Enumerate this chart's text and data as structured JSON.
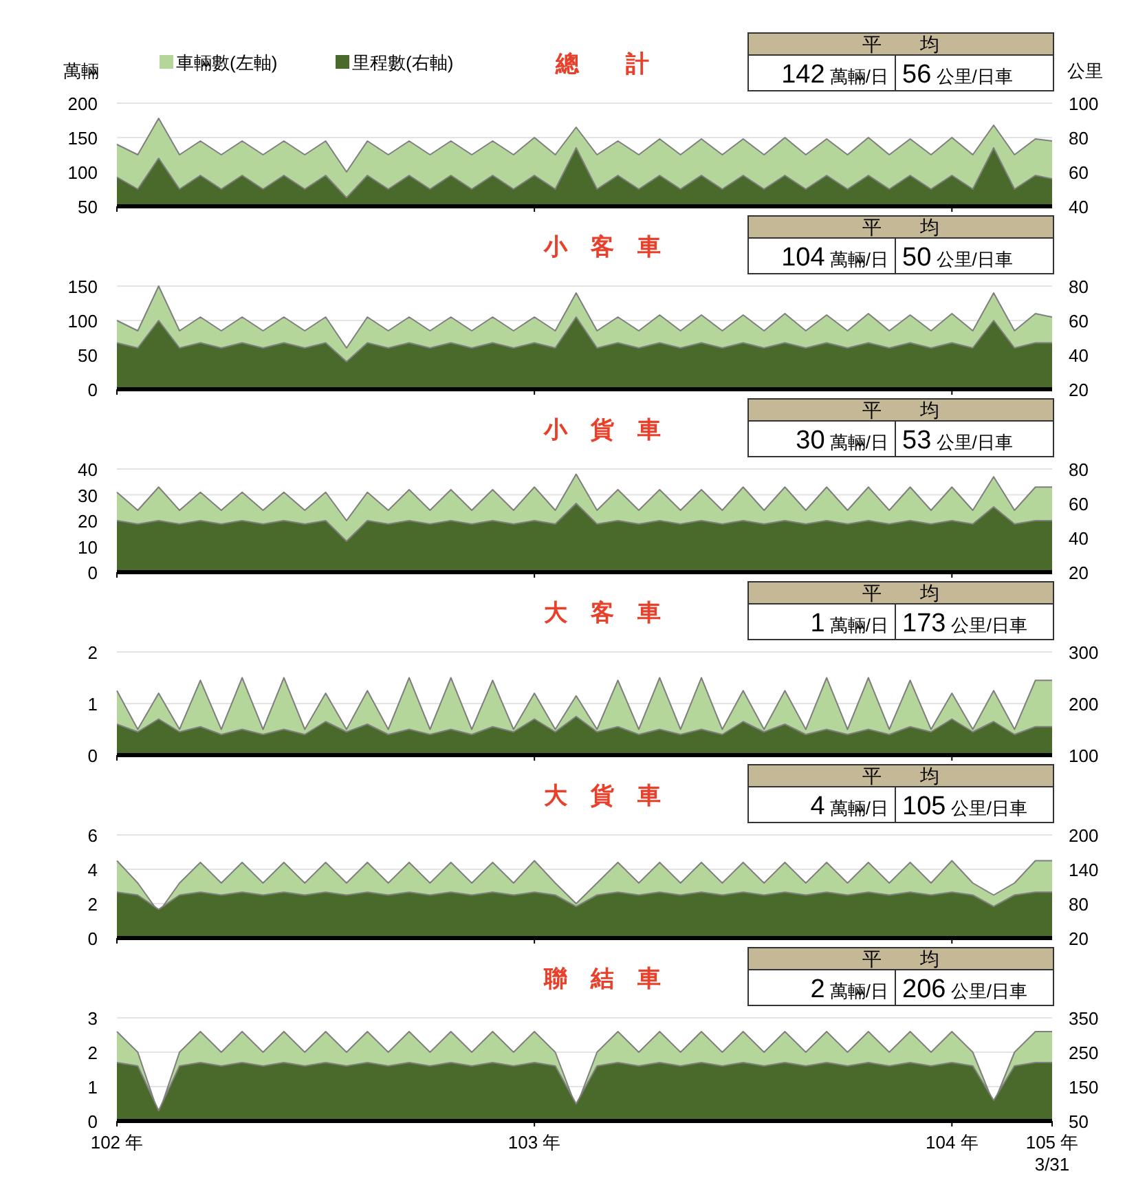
{
  "chart_data": [
    {
      "type": "area",
      "title": "總　　計",
      "ylabel": "萬輛",
      "y2label": "公里",
      "legend": "top left",
      "grid": "y",
      "tick_labels": "y",
      "annotations": [
        "平　　均",
        "142 萬輛/日",
        "56 公里/日車"
      ],
      "x": [
        102,
        102.05,
        102.1,
        102.15,
        102.2,
        102.25,
        102.3,
        102.35,
        102.4,
        102.45,
        102.5,
        102.55,
        102.6,
        102.65,
        102.7,
        102.75,
        102.8,
        102.85,
        102.9,
        102.95,
        103,
        103.05,
        103.1,
        103.15,
        103.2,
        103.25,
        103.3,
        103.35,
        103.4,
        103.45,
        103.5,
        103.55,
        103.6,
        103.65,
        103.7,
        103.75,
        103.8,
        103.85,
        103.9,
        103.95,
        104,
        104.05,
        104.1,
        104.15,
        104.2,
        104.24
      ],
      "xlim": [
        102,
        104.24
      ],
      "xticks": [
        102,
        103,
        104
      ],
      "ylim": [
        50,
        200
      ],
      "yticks": [
        50,
        100,
        150,
        200
      ],
      "y2lim": [
        40,
        100
      ],
      "y2ticks": [
        40,
        60,
        80,
        100
      ],
      "series": [
        {
          "name": "車輛數(左軸)",
          "color": "#b5d69a",
          "values": [
            140,
            125,
            178,
            125,
            145,
            125,
            145,
            125,
            145,
            125,
            145,
            100,
            145,
            125,
            145,
            125,
            145,
            125,
            145,
            125,
            150,
            125,
            165,
            125,
            145,
            125,
            148,
            125,
            148,
            125,
            148,
            125,
            150,
            125,
            148,
            125,
            150,
            125,
            148,
            125,
            150,
            125,
            168,
            125,
            148,
            145
          ]
        },
        {
          "name": "里程數(右軸)",
          "color": "#4a6a2c",
          "axis": "y2",
          "values": [
            57,
            50,
            68,
            50,
            58,
            50,
            58,
            50,
            58,
            50,
            58,
            45,
            58,
            50,
            58,
            50,
            58,
            50,
            58,
            50,
            58,
            50,
            74,
            50,
            58,
            50,
            58,
            50,
            58,
            50,
            58,
            50,
            58,
            50,
            58,
            50,
            58,
            50,
            58,
            50,
            58,
            50,
            74,
            50,
            58,
            56
          ]
        }
      ]
    },
    {
      "type": "area",
      "title": "小　客　車",
      "grid": "y",
      "tick_labels": "y",
      "annotations": [
        "平　　均",
        "104 萬輛/日",
        "50 公里/日車"
      ],
      "x": [
        102,
        102.05,
        102.1,
        102.15,
        102.2,
        102.25,
        102.3,
        102.35,
        102.4,
        102.45,
        102.5,
        102.55,
        102.6,
        102.65,
        102.7,
        102.75,
        102.8,
        102.85,
        102.9,
        102.95,
        103,
        103.05,
        103.1,
        103.15,
        103.2,
        103.25,
        103.3,
        103.35,
        103.4,
        103.45,
        103.5,
        103.55,
        103.6,
        103.65,
        103.7,
        103.75,
        103.8,
        103.85,
        103.9,
        103.95,
        104,
        104.05,
        104.1,
        104.15,
        104.2,
        104.24
      ],
      "xlim": [
        102,
        104.24
      ],
      "xticks": [
        102,
        103,
        104
      ],
      "ylim": [
        0,
        150
      ],
      "yticks": [
        0,
        50,
        100,
        150
      ],
      "y2lim": [
        20,
        80
      ],
      "y2ticks": [
        20,
        40,
        60,
        80
      ],
      "series": [
        {
          "color": "#b5d69a",
          "values": [
            100,
            85,
            150,
            85,
            105,
            85,
            105,
            85,
            105,
            85,
            105,
            60,
            105,
            85,
            105,
            85,
            105,
            85,
            105,
            85,
            105,
            85,
            140,
            85,
            105,
            85,
            108,
            85,
            108,
            85,
            108,
            85,
            110,
            85,
            108,
            85,
            110,
            85,
            108,
            85,
            110,
            85,
            140,
            85,
            110,
            105
          ]
        },
        {
          "color": "#4a6a2c",
          "axis": "y2",
          "values": [
            47,
            44,
            60,
            44,
            47,
            44,
            47,
            44,
            47,
            44,
            47,
            36,
            47,
            44,
            47,
            44,
            47,
            44,
            47,
            44,
            47,
            44,
            62,
            44,
            47,
            44,
            47,
            44,
            47,
            44,
            47,
            44,
            47,
            44,
            47,
            44,
            47,
            44,
            47,
            44,
            47,
            44,
            60,
            44,
            47,
            47
          ]
        }
      ]
    },
    {
      "type": "area",
      "title": "小　貨　車",
      "grid": "y",
      "tick_labels": "y",
      "annotations": [
        "平　　均",
        "30 萬輛/日",
        "53 公里/日車"
      ],
      "x": [
        102,
        102.05,
        102.1,
        102.15,
        102.2,
        102.25,
        102.3,
        102.35,
        102.4,
        102.45,
        102.5,
        102.55,
        102.6,
        102.65,
        102.7,
        102.75,
        102.8,
        102.85,
        102.9,
        102.95,
        103,
        103.05,
        103.1,
        103.15,
        103.2,
        103.25,
        103.3,
        103.35,
        103.4,
        103.45,
        103.5,
        103.55,
        103.6,
        103.65,
        103.7,
        103.75,
        103.8,
        103.85,
        103.9,
        103.95,
        104,
        104.05,
        104.1,
        104.15,
        104.2,
        104.24
      ],
      "xlim": [
        102,
        104.24
      ],
      "xticks": [
        102,
        103,
        104
      ],
      "ylim": [
        0,
        40
      ],
      "yticks": [
        0,
        10,
        20,
        30,
        40
      ],
      "y2lim": [
        20,
        80
      ],
      "y2ticks": [
        20,
        40,
        60,
        80
      ],
      "series": [
        {
          "color": "#b5d69a",
          "values": [
            31,
            24,
            33,
            24,
            31,
            24,
            31,
            24,
            31,
            24,
            31,
            20,
            31,
            24,
            32,
            24,
            32,
            24,
            32,
            24,
            33,
            24,
            38,
            24,
            32,
            24,
            32,
            24,
            32,
            24,
            33,
            24,
            33,
            24,
            33,
            24,
            33,
            24,
            33,
            24,
            33,
            24,
            37,
            24,
            33,
            33
          ]
        },
        {
          "color": "#4a6a2c",
          "axis": "y2",
          "values": [
            50,
            48,
            50,
            48,
            50,
            48,
            50,
            48,
            50,
            48,
            50,
            38,
            50,
            48,
            50,
            48,
            50,
            48,
            50,
            48,
            50,
            48,
            60,
            48,
            50,
            48,
            50,
            48,
            50,
            48,
            50,
            48,
            50,
            48,
            50,
            48,
            50,
            48,
            50,
            48,
            50,
            48,
            58,
            48,
            50,
            50
          ]
        }
      ]
    },
    {
      "type": "area",
      "title": "大　客　車",
      "grid": "y",
      "tick_labels": "y",
      "annotations": [
        "平　　均",
        "1 萬輛/日",
        "173 公里/日車"
      ],
      "x": [
        102,
        102.05,
        102.1,
        102.15,
        102.2,
        102.25,
        102.3,
        102.35,
        102.4,
        102.45,
        102.5,
        102.55,
        102.6,
        102.65,
        102.7,
        102.75,
        102.8,
        102.85,
        102.9,
        102.95,
        103,
        103.05,
        103.1,
        103.15,
        103.2,
        103.25,
        103.3,
        103.35,
        103.4,
        103.45,
        103.5,
        103.55,
        103.6,
        103.65,
        103.7,
        103.75,
        103.8,
        103.85,
        103.9,
        103.95,
        104,
        104.05,
        104.1,
        104.15,
        104.2,
        104.24
      ],
      "xlim": [
        102,
        104.24
      ],
      "xticks": [
        102,
        103,
        104
      ],
      "ylim": [
        0,
        2
      ],
      "yticks": [
        0,
        1,
        2
      ],
      "y2lim": [
        100,
        300
      ],
      "y2ticks": [
        100,
        200,
        300
      ],
      "series": [
        {
          "color": "#b5d69a",
          "values": [
            1.25,
            0.5,
            1.2,
            0.5,
            1.45,
            0.5,
            1.5,
            0.5,
            1.5,
            0.5,
            1.2,
            0.5,
            1.25,
            0.5,
            1.5,
            0.5,
            1.5,
            0.5,
            1.45,
            0.5,
            1.2,
            0.5,
            1.15,
            0.5,
            1.45,
            0.5,
            1.5,
            0.5,
            1.5,
            0.5,
            1.25,
            0.5,
            1.25,
            0.5,
            1.5,
            0.5,
            1.5,
            0.5,
            1.45,
            0.5,
            1.2,
            0.5,
            1.25,
            0.5,
            1.45,
            1.45
          ]
        },
        {
          "color": "#4a6a2c",
          "axis": "y2",
          "values": [
            160,
            145,
            170,
            145,
            155,
            140,
            150,
            140,
            150,
            140,
            165,
            145,
            160,
            140,
            150,
            140,
            150,
            140,
            155,
            145,
            170,
            145,
            175,
            145,
            155,
            140,
            150,
            140,
            150,
            140,
            165,
            145,
            160,
            140,
            150,
            140,
            150,
            140,
            155,
            145,
            170,
            145,
            165,
            140,
            155,
            155
          ]
        }
      ]
    },
    {
      "type": "area",
      "title": "大　貨　車",
      "grid": "y",
      "tick_labels": "y",
      "annotations": [
        "平　　均",
        "4 萬輛/日",
        "105 公里/日車"
      ],
      "x": [
        102,
        102.05,
        102.1,
        102.15,
        102.2,
        102.25,
        102.3,
        102.35,
        102.4,
        102.45,
        102.5,
        102.55,
        102.6,
        102.65,
        102.7,
        102.75,
        102.8,
        102.85,
        102.9,
        102.95,
        103,
        103.05,
        103.1,
        103.15,
        103.2,
        103.25,
        103.3,
        103.35,
        103.4,
        103.45,
        103.5,
        103.55,
        103.6,
        103.65,
        103.7,
        103.75,
        103.8,
        103.85,
        103.9,
        103.95,
        104,
        104.05,
        104.1,
        104.15,
        104.2,
        104.24
      ],
      "xlim": [
        102,
        104.24
      ],
      "xticks": [
        102,
        103,
        104
      ],
      "ylim": [
        0,
        6
      ],
      "yticks": [
        0,
        2,
        4,
        6
      ],
      "y2lim": [
        20,
        200
      ],
      "y2ticks": [
        20,
        80,
        140,
        200
      ],
      "series": [
        {
          "color": "#b5d69a",
          "values": [
            4.5,
            3.2,
            1.5,
            3.2,
            4.4,
            3.2,
            4.4,
            3.2,
            4.4,
            3.2,
            4.4,
            3.2,
            4.4,
            3.2,
            4.4,
            3.2,
            4.4,
            3.2,
            4.4,
            3.2,
            4.5,
            3.2,
            2.0,
            3.2,
            4.4,
            3.2,
            4.4,
            3.2,
            4.4,
            3.2,
            4.4,
            3.2,
            4.4,
            3.2,
            4.4,
            3.2,
            4.4,
            3.2,
            4.4,
            3.2,
            4.5,
            3.2,
            2.5,
            3.2,
            4.5,
            4.5
          ]
        },
        {
          "color": "#4a6a2c",
          "axis": "y2",
          "values": [
            100,
            95,
            70,
            95,
            100,
            95,
            100,
            95,
            100,
            95,
            100,
            95,
            100,
            95,
            100,
            95,
            100,
            95,
            100,
            95,
            100,
            95,
            75,
            95,
            100,
            95,
            100,
            95,
            100,
            95,
            100,
            95,
            100,
            95,
            100,
            95,
            100,
            95,
            100,
            95,
            100,
            95,
            75,
            95,
            100,
            100
          ]
        }
      ]
    },
    {
      "type": "area",
      "title": "聯　結　車",
      "grid": "y",
      "annotations": [
        "平　　均",
        "2 萬輛/日",
        "206 公里/日車"
      ],
      "x": [
        102,
        102.05,
        102.1,
        102.15,
        102.2,
        102.25,
        102.3,
        102.35,
        102.4,
        102.45,
        102.5,
        102.55,
        102.6,
        102.65,
        102.7,
        102.75,
        102.8,
        102.85,
        102.9,
        102.95,
        103,
        103.05,
        103.1,
        103.15,
        103.2,
        103.25,
        103.3,
        103.35,
        103.4,
        103.45,
        103.5,
        103.55,
        103.6,
        103.65,
        103.7,
        103.75,
        103.8,
        103.85,
        103.9,
        103.95,
        104,
        104.05,
        104.1,
        104.15,
        104.2,
        104.24
      ],
      "xlim": [
        102,
        104.24
      ],
      "xticks": [
        {
          "value": 102,
          "label": "102 年"
        },
        {
          "value": 103,
          "label": "103 年"
        },
        {
          "value": 104,
          "label": "104 年"
        },
        {
          "value": 104.24,
          "label": "105 年\n3/31"
        }
      ],
      "ylim": [
        0,
        3
      ],
      "yticks": [
        0,
        1,
        2,
        3
      ],
      "y2lim": [
        50,
        350
      ],
      "y2ticks": [
        50,
        150,
        250,
        350
      ],
      "series": [
        {
          "color": "#b5d69a",
          "values": [
            2.6,
            2.0,
            0.2,
            2.0,
            2.6,
            2.0,
            2.6,
            2.0,
            2.6,
            2.0,
            2.6,
            2.0,
            2.6,
            2.0,
            2.6,
            2.0,
            2.6,
            2.0,
            2.6,
            2.0,
            2.6,
            2.0,
            0.4,
            2.0,
            2.6,
            2.0,
            2.6,
            2.0,
            2.6,
            2.0,
            2.6,
            2.0,
            2.6,
            2.0,
            2.6,
            2.0,
            2.6,
            2.0,
            2.6,
            2.0,
            2.6,
            2.0,
            0.5,
            2.0,
            2.6,
            2.6
          ]
        },
        {
          "color": "#4a6a2c",
          "axis": "y2",
          "values": [
            220,
            210,
            80,
            210,
            220,
            210,
            220,
            210,
            220,
            210,
            220,
            210,
            220,
            210,
            220,
            210,
            220,
            210,
            220,
            210,
            220,
            210,
            100,
            210,
            220,
            210,
            220,
            210,
            220,
            210,
            220,
            210,
            220,
            210,
            220,
            210,
            220,
            210,
            220,
            210,
            220,
            210,
            110,
            210,
            220,
            220
          ]
        }
      ]
    }
  ]
}
